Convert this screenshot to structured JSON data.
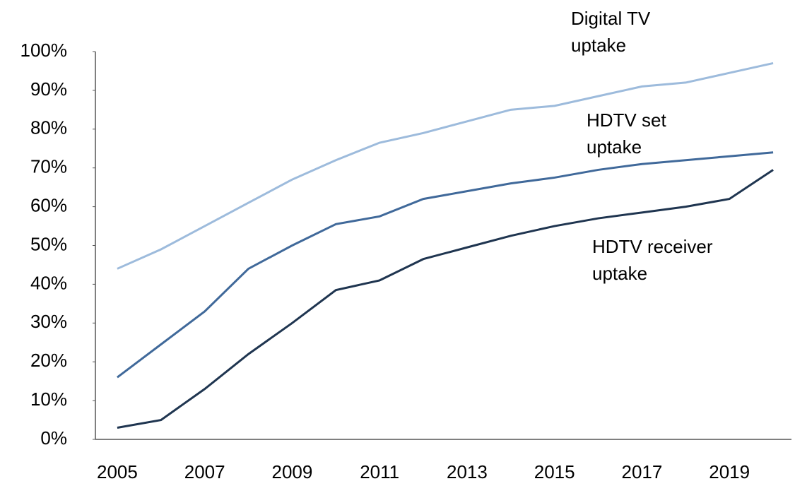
{
  "chart_data": {
    "type": "line",
    "x": [
      2005,
      2006,
      2007,
      2008,
      2009,
      2010,
      2011,
      2012,
      2013,
      2014,
      2015,
      2016,
      2017,
      2018,
      2019,
      2020
    ],
    "xlim": [
      2004.5,
      2020.5
    ],
    "xticks": [
      2005,
      2007,
      2009,
      2011,
      2013,
      2015,
      2017,
      2019
    ],
    "ylim": [
      0,
      100
    ],
    "yticks": [
      {
        "value": 0,
        "label": "0%"
      },
      {
        "value": 10,
        "label": "10%"
      },
      {
        "value": 20,
        "label": "20%"
      },
      {
        "value": 30,
        "label": "30%"
      },
      {
        "value": 40,
        "label": "40%"
      },
      {
        "value": 50,
        "label": "50%"
      },
      {
        "value": 60,
        "label": "60%"
      },
      {
        "value": 70,
        "label": "70%"
      },
      {
        "value": 80,
        "label": "80%"
      },
      {
        "value": 90,
        "label": "90%"
      },
      {
        "value": 100,
        "label": "100%"
      }
    ],
    "grid": false,
    "series": [
      {
        "label_lines": [
          "Digital TV",
          "uptake"
        ],
        "color": "#9dbbdc",
        "values": [
          44,
          49,
          55,
          61,
          67,
          72,
          76.5,
          79,
          82,
          85,
          86,
          88.5,
          91,
          92,
          94.5,
          97
        ]
      },
      {
        "label_lines": [
          "HDTV set",
          "uptake"
        ],
        "color": "#40699a",
        "values": [
          16,
          24.5,
          33,
          44,
          50,
          55.5,
          57.5,
          62,
          64,
          66,
          67.5,
          69.5,
          71,
          72,
          73,
          74
        ]
      },
      {
        "label_lines": [
          "HDTV receiver",
          "uptake"
        ],
        "color": "#1f3550",
        "values": [
          3,
          5,
          13,
          22,
          30,
          38.5,
          41,
          46.5,
          49.5,
          52.5,
          55,
          57,
          58.5,
          60,
          62,
          69.5
        ]
      }
    ]
  }
}
